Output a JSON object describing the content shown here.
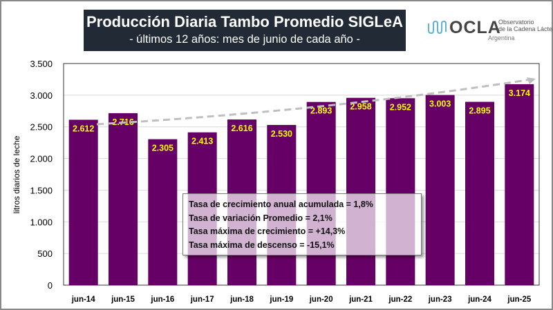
{
  "chart_data": {
    "type": "bar",
    "title": "Producción Diaria Tambo Promedio SIGLeA",
    "subtitle": "- últimos 12 años: mes de junio de cada año -",
    "ylabel": "litros diarios de leche",
    "xlabel": "",
    "ylim": [
      0,
      3500
    ],
    "yticks": [
      0,
      500,
      1000,
      1500,
      2000,
      2500,
      3000,
      3500
    ],
    "ytick_labels": [
      "0",
      "500",
      "1.000",
      "1.500",
      "2.000",
      "2.500",
      "3.000",
      "3.500"
    ],
    "categories": [
      "jun-14",
      "jun-15",
      "jun-16",
      "jun-17",
      "jun-18",
      "jun-19",
      "jun-20",
      "jun-21",
      "jun-22",
      "jun-23",
      "jun-24",
      "jun-25"
    ],
    "values": [
      2612,
      2716,
      2305,
      2413,
      2616,
      2530,
      2893,
      2958,
      2952,
      3003,
      2895,
      3174
    ],
    "data_labels": [
      "2.612",
      "2.716",
      "2.305",
      "2.413",
      "2.616",
      "2.530",
      "2.893",
      "2.958",
      "2.952",
      "3.003",
      "2.895",
      "3.174"
    ],
    "trendline": "dashed grey, exponential",
    "grid": "horizontal",
    "colors": {
      "bar": "#660066",
      "label": "#ffff00",
      "trend": "#bfbfbf",
      "title_bg": "#222a35"
    }
  },
  "stats": [
    "Tasa de crecimiento anual acumulada = 1,8%",
    "Tasa de variación Promedio = 2,1%",
    "Tasa máxima de crecimiento = +14,3%",
    "Tasa máxima de descenso = -15,1%"
  ],
  "logo": {
    "name": "OCLA",
    "line1": "Observatorio",
    "line2": "de la Cadena Láctea",
    "line3": "Argentina"
  }
}
